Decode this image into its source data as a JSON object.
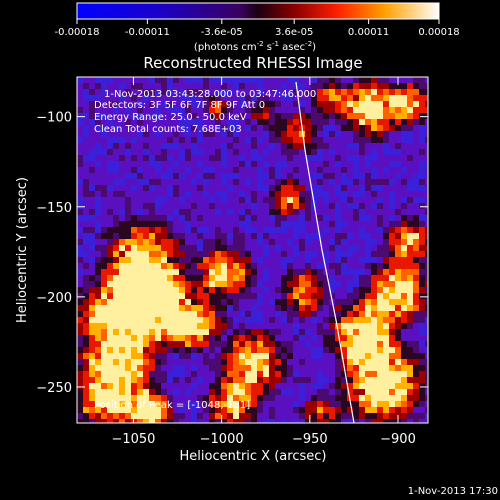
{
  "colorbar": {
    "ticks": [
      "-0.00018",
      "-0.00011",
      "-3.6e-05",
      "3.6e-05",
      "0.00011",
      "0.00018"
    ],
    "tick_values": [
      -0.00018,
      -0.00011,
      -3.6e-05,
      3.6e-05,
      0.00011,
      0.00018
    ],
    "range": [
      -0.00018,
      0.00018
    ],
    "units_prefix": "(photons cm",
    "units_exp1": "-2",
    "units_mid": " s",
    "units_exp2": "-1",
    "units_suffix": " asec",
    "units_exp3": "-2",
    "units_close": ")"
  },
  "image": {
    "title": "Reconstructed RHESSI Image",
    "xlabel": "Heliocentric X (arcsec)",
    "ylabel": "Heliocentric Y (arcsec)",
    "xlim": [
      -1082,
      -883
    ],
    "ylim": [
      -270,
      -78
    ],
    "xticks": [
      -1050,
      -1000,
      -950,
      -900
    ],
    "yticks": [
      -100,
      -150,
      -200,
      -250
    ],
    "annotations": {
      "time": "1-Nov-2013 03:43:28.000 to 03:47:46.000",
      "detectors": "Detectors: 3F 5F 6F 7F 8F 9F  Att 0",
      "energy": "Energy Range: 25.0 - 50.0 keV",
      "method": "Clean    Total counts: 7.68E+03",
      "peak": "Position of Peak = [-1048,-181]"
    }
  },
  "footer": {
    "date": "1-Nov-2013 17:30"
  },
  "colors": {
    "background": "#000000",
    "text": "#ffffff"
  }
}
